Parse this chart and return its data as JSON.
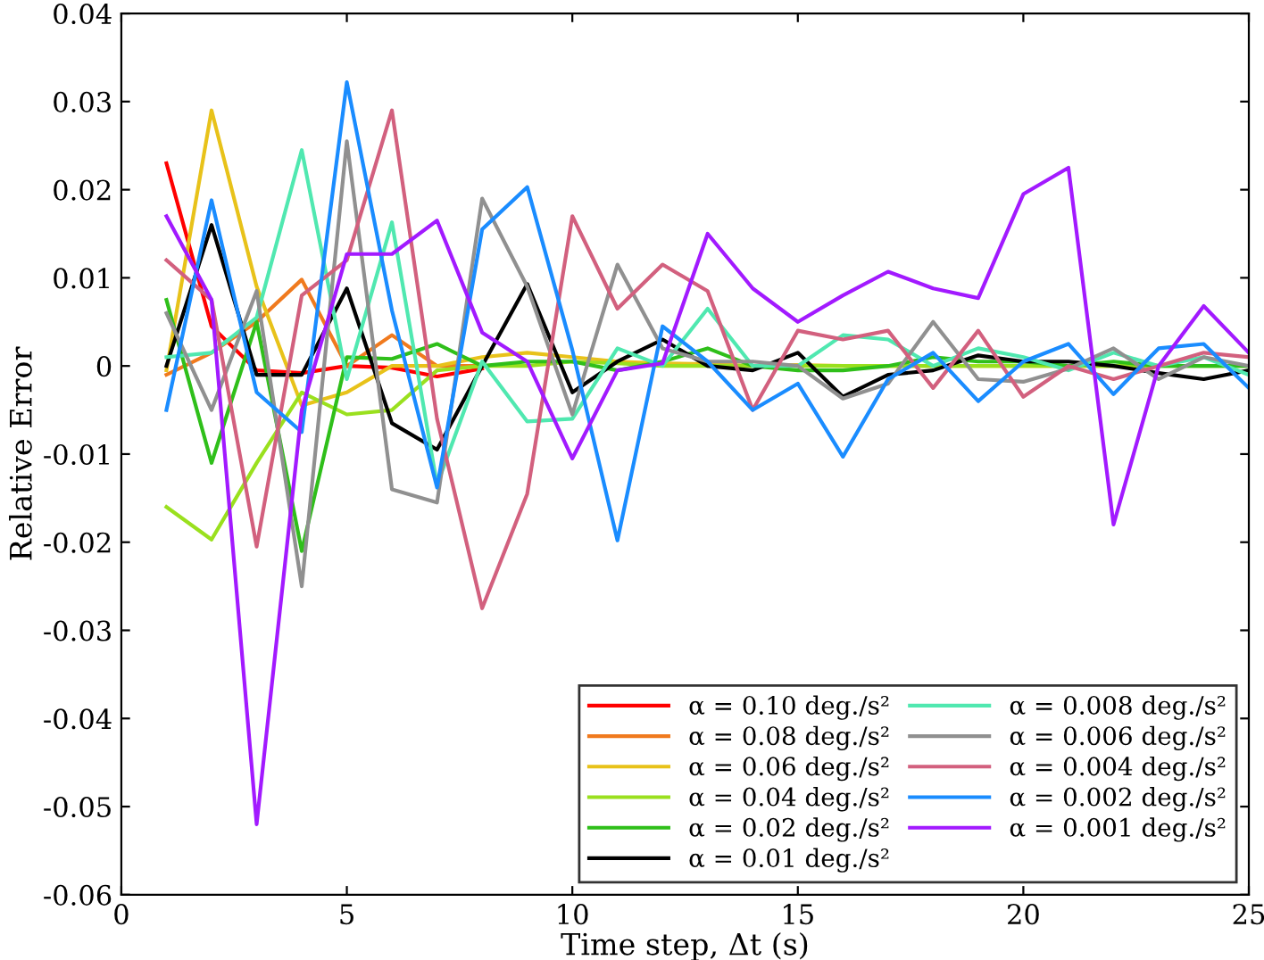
{
  "chart_data": {
    "type": "line",
    "xlabel": "Time step, Δt (s)",
    "ylabel": "Relative Error",
    "x": [
      1,
      2,
      3,
      4,
      5,
      6,
      7,
      8,
      9,
      10,
      11,
      12,
      13,
      14,
      15,
      16,
      17,
      18,
      19,
      20,
      21,
      22,
      23,
      24,
      25
    ],
    "xlim": [
      0,
      25
    ],
    "xticks": [
      0,
      5,
      10,
      15,
      20,
      25
    ],
    "ylim": [
      -0.06,
      0.04
    ],
    "yticks": [
      -0.06,
      -0.05,
      -0.04,
      -0.03,
      -0.02,
      -0.01,
      0,
      0.01,
      0.02,
      0.03,
      0.04
    ],
    "grid": false,
    "legend": "bottom right",
    "marker": "none",
    "line_style": "solid",
    "series": [
      {
        "name": "α = 0.10 deg./s²",
        "color": "#ff0000",
        "values": [
          0.023,
          0.0045,
          -0.0005,
          -0.0008,
          0.0,
          -0.0002,
          -0.0012,
          -0.0003,
          null,
          null,
          null,
          null,
          null,
          null,
          null,
          null,
          null,
          null,
          null,
          null,
          null,
          null,
          null,
          null,
          null
        ]
      },
      {
        "name": "α = 0.08 deg./s²",
        "color": "#f07a1e",
        "values": [
          -0.001,
          0.0015,
          0.005,
          0.0098,
          0.0,
          0.0035,
          0.0,
          0.0,
          null,
          null,
          null,
          null,
          null,
          null,
          null,
          null,
          null,
          null,
          null,
          null,
          null,
          null,
          null,
          null,
          null
        ]
      },
      {
        "name": "α = 0.06 deg./s²",
        "color": "#e8c21a",
        "values": [
          -0.0005,
          0.029,
          0.009,
          -0.0045,
          -0.003,
          0.0,
          0.0,
          0.001,
          0.0015,
          0.001,
          0.0005,
          0.0003,
          0.0002,
          0.0,
          0.0001,
          0.0,
          0.0,
          0.0,
          0.0,
          0.0,
          0.0,
          0.0,
          0.0,
          null,
          null
        ]
      },
      {
        "name": "α = 0.04 deg./s²",
        "color": "#9ae01e",
        "values": [
          -0.016,
          -0.0197,
          -0.011,
          -0.003,
          -0.0055,
          -0.005,
          -0.0005,
          0.0,
          0.0,
          0.0005,
          0.0003,
          0.0,
          0.0,
          0.0,
          0.0,
          0.0,
          0.0,
          0.0,
          0.0,
          0.0,
          0.0,
          0.0,
          0.0,
          0.0,
          0.0
        ]
      },
      {
        "name": "α = 0.02 deg./s²",
        "color": "#2fbf1a",
        "values": [
          0.0075,
          -0.011,
          0.005,
          -0.021,
          0.001,
          0.0008,
          0.0025,
          0.0,
          0.0005,
          0.0005,
          -0.0005,
          0.0005,
          0.002,
          0.0,
          -0.0005,
          -0.0005,
          0.0,
          0.001,
          0.0005,
          0.0005,
          0.0,
          0.0005,
          0.0,
          0.0,
          0.0
        ]
      },
      {
        "name": "α = 0.01 deg./s²",
        "color": "#000000",
        "values": [
          0.0,
          0.016,
          -0.001,
          -0.001,
          0.0088,
          -0.0065,
          -0.0095,
          0.0,
          0.0093,
          -0.003,
          0.0005,
          0.003,
          0.0,
          -0.0005,
          0.0015,
          -0.0035,
          -0.001,
          -0.0005,
          0.0012,
          0.0005,
          0.0005,
          0.0,
          -0.0008,
          -0.0015,
          -0.0005
        ]
      },
      {
        "name": "α = 0.008 deg./s²",
        "color": "#50e8b0",
        "values": [
          0.001,
          0.0015,
          0.0055,
          0.0245,
          -0.0015,
          0.0163,
          -0.0135,
          0.0005,
          -0.0063,
          -0.006,
          0.002,
          0.0,
          0.0065,
          0.0,
          0.0,
          0.0035,
          0.003,
          0.0,
          0.002,
          0.001,
          -0.0005,
          0.0015,
          0.0,
          0.001,
          -0.001
        ]
      },
      {
        "name": "α = 0.006 deg./s²",
        "color": "#909090",
        "values": [
          0.006,
          -0.005,
          0.0085,
          -0.025,
          0.0255,
          -0.014,
          -0.0155,
          0.019,
          0.009,
          -0.0055,
          0.0115,
          0.002,
          0.0005,
          0.0005,
          0.0,
          -0.0037,
          -0.002,
          0.005,
          -0.0015,
          -0.0018,
          -0.0003,
          0.002,
          -0.0015,
          0.001,
          0.0
        ]
      },
      {
        "name": "α = 0.004 deg./s²",
        "color": "#d2607e",
        "values": [
          0.012,
          0.0075,
          -0.0205,
          0.008,
          0.012,
          0.029,
          -0.006,
          -0.0275,
          -0.0145,
          0.017,
          0.0065,
          0.0115,
          0.0085,
          -0.005,
          0.004,
          0.003,
          0.004,
          -0.0025,
          0.004,
          -0.0035,
          0.0,
          -0.0015,
          0.0,
          0.0015,
          0.001
        ]
      },
      {
        "name": "α = 0.002 deg./s²",
        "color": "#1a8cff",
        "values": [
          -0.005,
          0.0188,
          -0.003,
          -0.0075,
          0.0322,
          0.0063,
          -0.0138,
          0.0155,
          0.0203,
          0.0018,
          -0.0198,
          0.0045,
          0.0005,
          -0.005,
          -0.002,
          -0.0103,
          -0.0015,
          0.0015,
          -0.004,
          0.0005,
          0.0025,
          -0.0032,
          0.002,
          0.0025,
          -0.0025
        ]
      },
      {
        "name": "α = 0.001 deg./s²",
        "color": "#a21aff",
        "values": [
          0.017,
          0.0075,
          -0.052,
          -0.005,
          0.0127,
          0.0127,
          0.0165,
          0.0038,
          0.0005,
          -0.0105,
          -0.0005,
          0.0003,
          0.015,
          0.0088,
          0.005,
          0.008,
          0.0107,
          0.0088,
          0.0077,
          0.0195,
          0.0225,
          -0.018,
          0.0,
          0.0068,
          0.0015
        ]
      }
    ]
  }
}
